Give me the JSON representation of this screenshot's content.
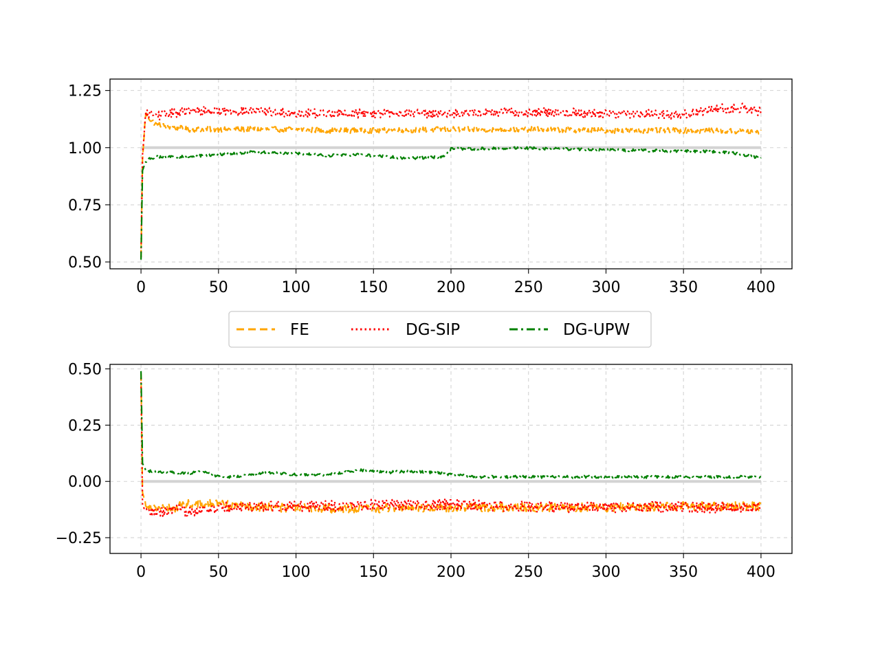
{
  "chart_data": [
    {
      "type": "line",
      "panel": "top",
      "title": "",
      "xlabel": "",
      "ylabel": "",
      "xlim": [
        -20,
        420
      ],
      "ylim": [
        0.47,
        1.3
      ],
      "xticks": [
        0,
        50,
        100,
        150,
        200,
        250,
        300,
        350,
        400
      ],
      "yticks": [
        0.5,
        0.75,
        1.0,
        1.25
      ],
      "xtick_labels": [
        "0",
        "50",
        "100",
        "150",
        "200",
        "250",
        "300",
        "350",
        "400"
      ],
      "ytick_labels": [
        "0.50",
        "0.75",
        "1.00",
        "1.25"
      ],
      "grid": true,
      "reference_line": 1.0,
      "series": [
        {
          "name": "FE",
          "color": "#ffa500",
          "dash": "dashed",
          "x": [
            0,
            1,
            3,
            5,
            10,
            20,
            30,
            40,
            50,
            60,
            70,
            80,
            100,
            120,
            150,
            200,
            250,
            300,
            350,
            400
          ],
          "y": [
            0.52,
            0.95,
            1.15,
            1.13,
            1.1,
            1.09,
            1.08,
            1.08,
            1.08,
            1.08,
            1.08,
            1.08,
            1.08,
            1.075,
            1.075,
            1.08,
            1.08,
            1.075,
            1.075,
            1.07
          ],
          "noise": 0.012
        },
        {
          "name": "DG-SIP",
          "color": "#ff0000",
          "dash": "dotted",
          "x": [
            0,
            1,
            3,
            5,
            10,
            20,
            30,
            50,
            70,
            100,
            120,
            150,
            200,
            250,
            300,
            350,
            370,
            390,
            400
          ],
          "y": [
            0.52,
            0.97,
            1.14,
            1.15,
            1.14,
            1.15,
            1.16,
            1.16,
            1.16,
            1.15,
            1.15,
            1.15,
            1.15,
            1.155,
            1.15,
            1.145,
            1.17,
            1.175,
            1.155
          ],
          "noise": 0.02
        },
        {
          "name": "DG-UPW",
          "color": "#008000",
          "dash": "dashdot",
          "x": [
            0,
            1,
            3,
            5,
            10,
            20,
            30,
            40,
            50,
            60,
            70,
            80,
            100,
            120,
            140,
            150,
            170,
            180,
            195,
            200,
            210,
            250,
            300,
            350,
            380,
            400
          ],
          "y": [
            0.51,
            0.9,
            0.94,
            0.95,
            0.96,
            0.96,
            0.96,
            0.965,
            0.97,
            0.975,
            0.98,
            0.98,
            0.975,
            0.965,
            0.97,
            0.965,
            0.955,
            0.955,
            0.96,
            0.995,
            0.995,
            0.998,
            0.99,
            0.985,
            0.98,
            0.955
          ],
          "noise": 0.006
        }
      ]
    },
    {
      "type": "line",
      "panel": "bottom",
      "title": "",
      "xlabel": "",
      "ylabel": "",
      "xlim": [
        -20,
        420
      ],
      "ylim": [
        -0.32,
        0.52
      ],
      "xticks": [
        0,
        50,
        100,
        150,
        200,
        250,
        300,
        350,
        400
      ],
      "yticks": [
        -0.25,
        0.0,
        0.25,
        0.5
      ],
      "xtick_labels": [
        "0",
        "50",
        "100",
        "150",
        "200",
        "250",
        "300",
        "350",
        "400"
      ],
      "ytick_labels": [
        "−0.25",
        "0.00",
        "0.25",
        "0.50"
      ],
      "grid": true,
      "reference_line": 0.0,
      "series": [
        {
          "name": "FE",
          "color": "#ffa500",
          "dash": "dashed",
          "x": [
            0,
            1,
            3,
            10,
            20,
            30,
            50,
            70,
            100,
            150,
            200,
            250,
            300,
            350,
            400
          ],
          "y": [
            0.48,
            -0.05,
            -0.1,
            -0.12,
            -0.12,
            -0.1,
            -0.1,
            -0.11,
            -0.12,
            -0.12,
            -0.115,
            -0.115,
            -0.115,
            -0.11,
            -0.11
          ],
          "noise": 0.02
        },
        {
          "name": "DG-SIP",
          "color": "#ff0000",
          "dash": "dotted",
          "x": [
            0,
            1,
            3,
            10,
            20,
            30,
            50,
            70,
            100,
            150,
            200,
            250,
            300,
            350,
            400
          ],
          "y": [
            0.46,
            -0.1,
            -0.14,
            -0.14,
            -0.13,
            -0.13,
            -0.12,
            -0.11,
            -0.11,
            -0.105,
            -0.105,
            -0.11,
            -0.115,
            -0.115,
            -0.115
          ],
          "noise": 0.025
        },
        {
          "name": "DG-UPW",
          "color": "#008000",
          "dash": "dashdot",
          "x": [
            0,
            1,
            3,
            10,
            20,
            30,
            40,
            50,
            60,
            80,
            100,
            120,
            140,
            150,
            160,
            170,
            190,
            200,
            220,
            250,
            300,
            350,
            400
          ],
          "y": [
            0.49,
            0.08,
            0.05,
            0.04,
            0.04,
            0.035,
            0.045,
            0.02,
            0.02,
            0.04,
            0.03,
            0.03,
            0.05,
            0.045,
            0.04,
            0.045,
            0.04,
            0.03,
            0.02,
            0.02,
            0.02,
            0.02,
            0.02
          ],
          "noise": 0.006
        }
      ]
    }
  ],
  "legend": {
    "placement": "between-panels",
    "entries": [
      {
        "label": "FE",
        "color": "#ffa500",
        "dash": "dashed"
      },
      {
        "label": "DG-SIP",
        "color": "#ff0000",
        "dash": "dotted"
      },
      {
        "label": "DG-UPW",
        "color": "#008000",
        "dash": "dashdot"
      }
    ]
  }
}
